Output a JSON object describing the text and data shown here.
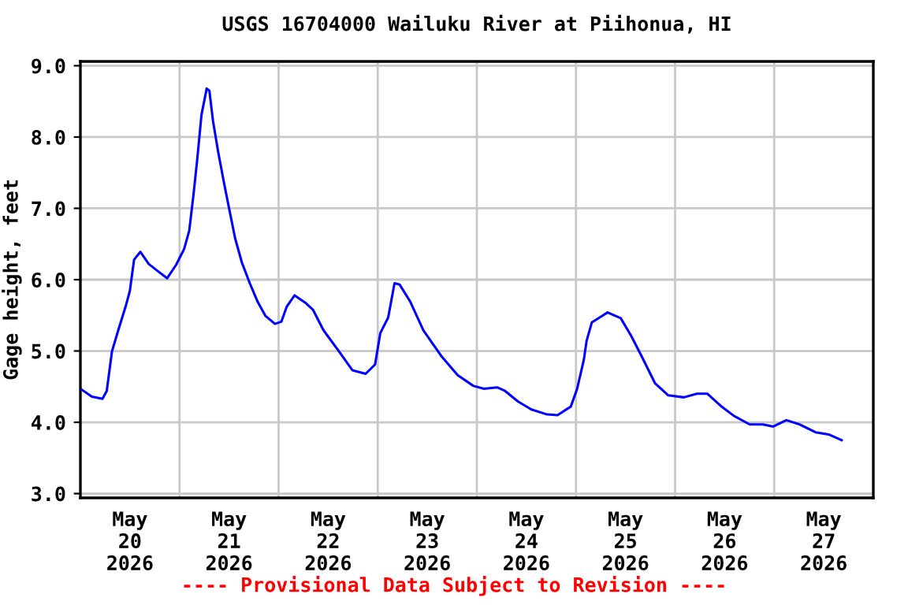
{
  "chart_data": {
    "type": "line",
    "title": "USGS 16704000 Wailuku River at Piihonua, HI",
    "ylabel": "Gage height, feet",
    "annotations": [
      "---- Provisional Data Subject to Revision ----"
    ],
    "xlim": [
      "2026-05-20T00:00",
      "2026-05-28T00:00"
    ],
    "xticks": [
      {
        "value": "2026-05-20T12:00",
        "label": "May\n20\n2026"
      },
      {
        "value": "2026-05-21T00:00",
        "label": null
      },
      {
        "value": "2026-05-21T12:00",
        "label": "May\n21\n2026"
      },
      {
        "value": "2026-05-22T00:00",
        "label": null
      },
      {
        "value": "2026-05-22T12:00",
        "label": "May\n22\n2026"
      },
      {
        "value": "2026-05-23T00:00",
        "label": null
      },
      {
        "value": "2026-05-23T12:00",
        "label": "May\n23\n2026"
      },
      {
        "value": "2026-05-24T00:00",
        "label": null
      },
      {
        "value": "2026-05-24T12:00",
        "label": "May\n24\n2026"
      },
      {
        "value": "2026-05-25T00:00",
        "label": null
      },
      {
        "value": "2026-05-25T12:00",
        "label": "May\n25\n2026"
      },
      {
        "value": "2026-05-26T00:00",
        "label": null
      },
      {
        "value": "2026-05-26T12:00",
        "label": "May\n26\n2026"
      },
      {
        "value": "2026-05-27T00:00",
        "label": null
      },
      {
        "value": "2026-05-27T12:00",
        "label": "May\n27\n2026"
      }
    ],
    "ylim": [
      2.94,
      9.06
    ],
    "yticks": [
      {
        "value": 3,
        "label": "3.0"
      },
      {
        "value": 4,
        "label": "4.0"
      },
      {
        "value": 5,
        "label": "5.0"
      },
      {
        "value": 6,
        "label": "6.0"
      },
      {
        "value": 7,
        "label": "7.0"
      },
      {
        "value": 8,
        "label": "8.0"
      },
      {
        "value": 9,
        "label": "9.0"
      }
    ],
    "grid": true,
    "legend": false,
    "series": [
      {
        "color": "#0000ff",
        "x": [
          "2026-05-20T00:16",
          "2026-05-20T02:47",
          "2026-05-20T05:21",
          "2026-05-20T06:23",
          "2026-05-20T07:38",
          "2026-05-20T09:10",
          "2026-05-20T11:05",
          "2026-05-20T11:58",
          "2026-05-20T13:00",
          "2026-05-20T14:31",
          "2026-05-20T16:33",
          "2026-05-20T18:44",
          "2026-05-20T21:01",
          "2026-05-20T23:12",
          "2026-05-21T01:07",
          "2026-05-21T02:22",
          "2026-05-21T03:24",
          "2026-05-21T04:17",
          "2026-05-21T05:19",
          "2026-05-21T06:35",
          "2026-05-21T07:14",
          "2026-05-21T08:06",
          "2026-05-21T09:22",
          "2026-05-21T10:40",
          "2026-05-21T11:56",
          "2026-05-21T13:28",
          "2026-05-21T15:06",
          "2026-05-21T17:01",
          "2026-05-21T18:55",
          "2026-05-21T20:50",
          "2026-05-21T23:07",
          "2026-05-22T00:39",
          "2026-05-22T01:57",
          "2026-05-22T03:52",
          "2026-05-22T06:23",
          "2026-05-22T08:18",
          "2026-05-22T10:52",
          "2026-05-22T14:25",
          "2026-05-22T17:51",
          "2026-05-22T21:04",
          "2026-05-22T23:21",
          "2026-05-23T00:37",
          "2026-05-23T02:32",
          "2026-05-23T04:04",
          "2026-05-23T05:19",
          "2026-05-23T07:53",
          "2026-05-23T11:03",
          "2026-05-23T15:31",
          "2026-05-23T19:21",
          "2026-05-23T23:10",
          "2026-05-24T01:44",
          "2026-05-24T04:54",
          "2026-05-24T06:49",
          "2026-05-24T09:59",
          "2026-05-24T13:11",
          "2026-05-24T17:01",
          "2026-05-24T19:32",
          "2026-05-24T22:45",
          "2026-05-25T00:17",
          "2026-05-25T01:55",
          "2026-05-25T02:34",
          "2026-05-25T03:50",
          "2026-05-25T07:39",
          "2026-05-25T10:50",
          "2026-05-25T13:23",
          "2026-05-25T15:57",
          "2026-05-25T19:07",
          "2026-05-25T22:17",
          "2026-05-26T02:07",
          "2026-05-26T05:19",
          "2026-05-26T07:50",
          "2026-05-26T11:03",
          "2026-05-26T14:14",
          "2026-05-26T18:03",
          "2026-05-26T21:13",
          "2026-05-26T23:47",
          "2026-05-27T02:57",
          "2026-05-27T06:10",
          "2026-05-27T09:59",
          "2026-05-27T13:09",
          "2026-05-27T16:20"
        ],
        "values": [
          4.46,
          4.36,
          4.33,
          4.44,
          4.99,
          5.29,
          5.65,
          5.84,
          6.28,
          6.39,
          6.22,
          6.12,
          6.02,
          6.21,
          6.43,
          6.69,
          7.2,
          7.68,
          8.31,
          8.68,
          8.65,
          8.23,
          7.79,
          7.39,
          7.02,
          6.58,
          6.24,
          5.95,
          5.69,
          5.49,
          5.38,
          5.41,
          5.62,
          5.78,
          5.68,
          5.58,
          5.29,
          5.01,
          4.73,
          4.68,
          4.81,
          5.25,
          5.47,
          5.95,
          5.93,
          5.69,
          5.29,
          4.92,
          4.66,
          4.51,
          4.47,
          4.49,
          4.44,
          4.29,
          4.18,
          4.11,
          4.1,
          4.22,
          4.47,
          4.88,
          5.14,
          5.4,
          5.54,
          5.46,
          5.21,
          4.92,
          4.55,
          4.38,
          4.35,
          4.4,
          4.4,
          4.23,
          4.09,
          3.97,
          3.97,
          3.94,
          4.03,
          3.97,
          3.86,
          3.83,
          3.75
        ]
      }
    ]
  }
}
